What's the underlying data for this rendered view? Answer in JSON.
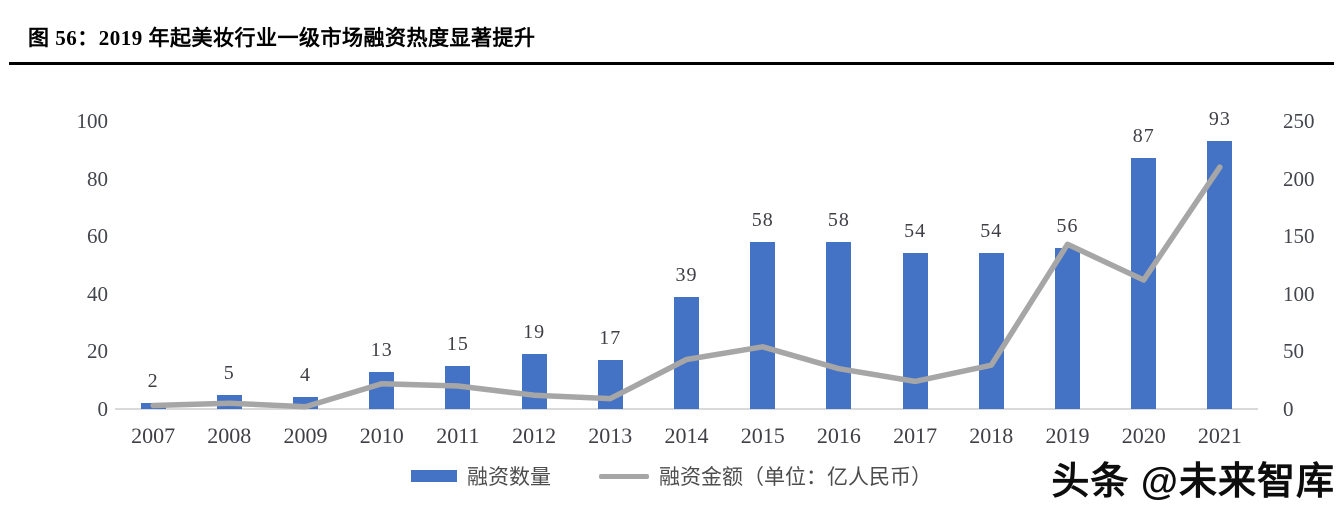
{
  "figure": {
    "title": "图 56：2019 年起美妆行业一级市场融资热度显著提升"
  },
  "watermark": "头条 @未来智库",
  "colors": {
    "bar": "#4472c4",
    "line": "#a6a6a6",
    "baseline": "#d9d9d9",
    "axis_text": "#44464e",
    "label_text": "#3f3f46",
    "title_text": "#000000",
    "legend_text": "#4d4d4d"
  },
  "chart_data": {
    "type": "bar",
    "subtype": "bar+line combo, dual y-axes",
    "title": "图 56：2019 年起美妆行业一级市场融资热度显著提升",
    "categories": [
      "2007",
      "2008",
      "2009",
      "2010",
      "2011",
      "2012",
      "2013",
      "2014",
      "2015",
      "2016",
      "2017",
      "2018",
      "2019",
      "2020",
      "2021"
    ],
    "series": [
      {
        "name": "融资数量",
        "type": "bar",
        "axis": "left",
        "values": [
          2,
          5,
          4,
          13,
          15,
          19,
          17,
          39,
          58,
          58,
          54,
          54,
          56,
          87,
          93
        ],
        "data_labels": [
          "2",
          "5",
          "4",
          "13",
          "15",
          "19",
          "17",
          "39",
          "58",
          "58",
          "54",
          "54",
          "56",
          "87",
          "93"
        ]
      },
      {
        "name": "融资金额（单位：亿人民币）",
        "type": "line",
        "axis": "right",
        "values": [
          3,
          5,
          2,
          22,
          20,
          12,
          9,
          43,
          54,
          35,
          24,
          38,
          143,
          112,
          210
        ],
        "values_note": "estimated from line position against right axis; no data labels shown"
      }
    ],
    "left_axis": {
      "ticks": [
        0,
        20,
        40,
        60,
        80,
        100
      ],
      "min": 0,
      "max": 100
    },
    "right_axis": {
      "ticks": [
        0,
        50,
        100,
        150,
        200,
        250
      ],
      "min": 0,
      "max": 250
    },
    "xlabel": "",
    "ylabel": "",
    "grid": false,
    "legend_position": "bottom",
    "legend": [
      "融资数量",
      "融资金额（单位：亿人民币）"
    ]
  }
}
